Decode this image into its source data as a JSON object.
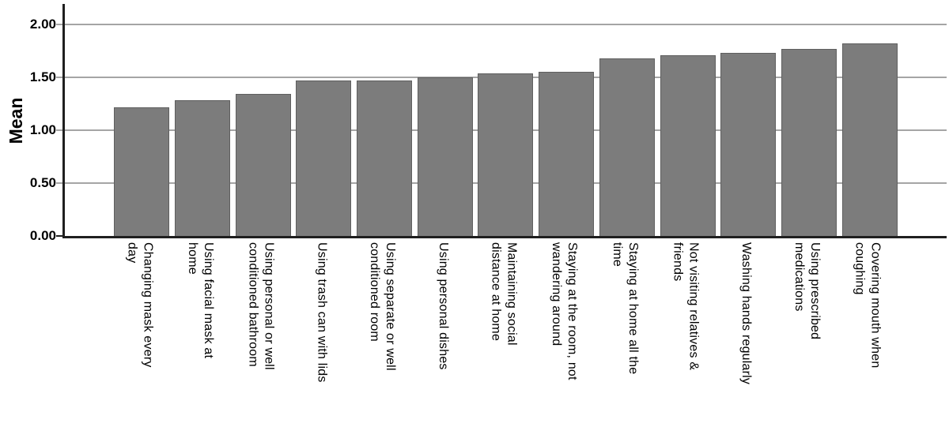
{
  "chart_data": {
    "type": "bar",
    "title": "",
    "xlabel": "",
    "ylabel": "Mean",
    "ylim": [
      0,
      2.0
    ],
    "ytick_labels": [
      "0.00",
      "0.50",
      "1.00",
      "1.50",
      "2.00"
    ],
    "grid": "horizontal",
    "legend": "none",
    "bar_color": "#7c7c7c",
    "bar_border_color": "#5f5f5f",
    "gridline_color": "#a5a5a5",
    "axis_color": "#1f1f1f",
    "categories": [
      "Changing mask every day",
      "Using facial mask at home",
      "Using personal or well conditioned bathroom",
      "Using trash can with lids",
      "Using separate or well conditioned room",
      "Using personal dishes",
      "Maintaining social distance at home",
      "Staying at the room, not wandering around",
      "Staying at home all the time",
      "Not visiting relatives & friends",
      "Washing hands regularly",
      "Using prescribed medications",
      "Covering mouth when coughing"
    ],
    "category_lines": [
      [
        "Changing mask every",
        "day"
      ],
      [
        "Using facial mask at",
        "home"
      ],
      [
        "Using personal or well",
        "conditioned bathroom"
      ],
      [
        "Using trash can with lids"
      ],
      [
        "Using separate or well",
        "conditioned room"
      ],
      [
        "Using personal dishes"
      ],
      [
        "Maintaining social",
        "distance at home"
      ],
      [
        "Staying at the room, not",
        "wandering around"
      ],
      [
        "Staying at home all the",
        "time"
      ],
      [
        "Not visiting relatives &",
        "friends"
      ],
      [
        "Washing hands regularly"
      ],
      [
        "Using prescribed",
        "medications"
      ],
      [
        "Covering mouth when",
        "coughing"
      ]
    ],
    "values": [
      1.22,
      1.28,
      1.34,
      1.47,
      1.47,
      1.5,
      1.54,
      1.55,
      1.68,
      1.71,
      1.73,
      1.77,
      1.82
    ]
  }
}
